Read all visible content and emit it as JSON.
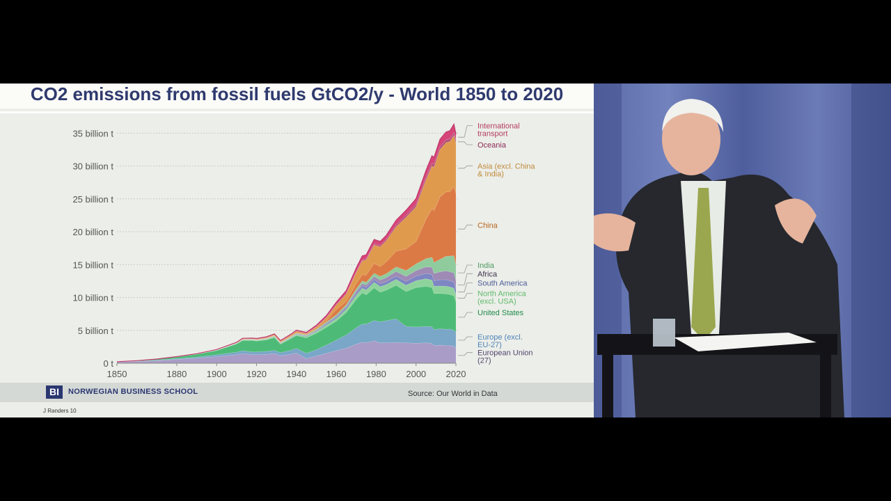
{
  "slide": {
    "title": "CO2 emissions from fossil fuels GtCO2/y - World 1850 to 2020",
    "school": "NORWEGIAN BUSINESS SCHOOL",
    "logo_text": "BI",
    "source": "Source: Our World in Data",
    "page_label": "J Randers 10"
  },
  "chart_data": {
    "type": "area",
    "stacked": true,
    "x": [
      1850,
      1860,
      1870,
      1880,
      1890,
      1900,
      1910,
      1913,
      1918,
      1920,
      1925,
      1929,
      1932,
      1937,
      1940,
      1945,
      1950,
      1955,
      1960,
      1965,
      1970,
      1973,
      1975,
      1979,
      1982,
      1985,
      1990,
      1995,
      2000,
      2005,
      2008,
      2009,
      2012,
      2015,
      2017,
      2019,
      2020
    ],
    "y_tick_labels": [
      "0 t",
      "5 billion t",
      "10 billion t",
      "15 billion t",
      "20 billion t",
      "25 billion t",
      "30 billion t",
      "35 billion t"
    ],
    "y_ticks": [
      0,
      5,
      10,
      15,
      20,
      25,
      30,
      35
    ],
    "x_ticks": [
      1850,
      1880,
      1900,
      1920,
      1940,
      1960,
      1980,
      2000,
      2020
    ],
    "ylim": [
      0,
      36
    ],
    "xlim": [
      1850,
      2020
    ],
    "y_unit": "billion t",
    "grid": true,
    "legend_placement": "right",
    "series": [
      {
        "name": "European Union (27)",
        "color": "#a99cc6",
        "values": [
          0.18,
          0.28,
          0.4,
          0.58,
          0.75,
          1.0,
          1.3,
          1.45,
          1.3,
          1.3,
          1.35,
          1.45,
          1.15,
          1.35,
          1.55,
          0.7,
          1.1,
          1.5,
          1.9,
          2.3,
          2.9,
          3.2,
          3.1,
          3.4,
          3.1,
          3.1,
          3.15,
          3.1,
          3.05,
          3.1,
          3.0,
          2.7,
          2.75,
          2.7,
          2.7,
          2.55,
          2.35
        ]
      },
      {
        "name": "Europe (excl. EU-27)",
        "color": "#7aa6c8",
        "values": [
          0.02,
          0.05,
          0.08,
          0.12,
          0.17,
          0.28,
          0.38,
          0.45,
          0.4,
          0.42,
          0.45,
          0.5,
          0.45,
          0.6,
          0.7,
          0.8,
          0.95,
          1.25,
          1.6,
          2.0,
          2.5,
          2.75,
          2.85,
          3.1,
          3.2,
          3.35,
          3.6,
          2.5,
          2.45,
          2.5,
          2.55,
          2.4,
          2.5,
          2.45,
          2.5,
          2.45,
          2.3
        ]
      },
      {
        "name": "United States",
        "color": "#4dbb77",
        "values": [
          0.03,
          0.06,
          0.15,
          0.25,
          0.45,
          0.65,
          1.25,
          1.55,
          1.75,
          1.65,
          1.75,
          1.95,
          1.3,
          1.75,
          1.95,
          2.35,
          2.5,
          2.7,
          2.9,
          3.4,
          4.3,
          4.75,
          4.45,
          4.95,
          4.5,
          4.65,
          5.1,
          5.3,
          6.0,
          6.1,
          5.95,
          5.5,
          5.35,
          5.4,
          5.25,
          5.25,
          4.7
        ]
      },
      {
        "name": "North America (excl. USA)",
        "color": "#8fd39c",
        "values": [
          0.0,
          0.0,
          0.01,
          0.02,
          0.03,
          0.05,
          0.08,
          0.09,
          0.1,
          0.1,
          0.11,
          0.13,
          0.11,
          0.13,
          0.15,
          0.2,
          0.25,
          0.35,
          0.4,
          0.5,
          0.65,
          0.72,
          0.75,
          0.85,
          0.85,
          0.85,
          0.9,
          0.95,
          1.05,
          1.15,
          1.15,
          1.1,
          1.15,
          1.15,
          1.15,
          1.15,
          1.05
        ]
      },
      {
        "name": "South America",
        "color": "#7d86c2",
        "values": [
          0.0,
          0.0,
          0.0,
          0.01,
          0.01,
          0.01,
          0.02,
          0.03,
          0.03,
          0.03,
          0.04,
          0.05,
          0.05,
          0.06,
          0.07,
          0.08,
          0.1,
          0.15,
          0.2,
          0.25,
          0.32,
          0.36,
          0.38,
          0.45,
          0.45,
          0.45,
          0.5,
          0.6,
          0.7,
          0.8,
          0.85,
          0.85,
          0.95,
          1.0,
          0.95,
          0.95,
          0.85
        ]
      },
      {
        "name": "Africa",
        "color": "#9e8ab5",
        "values": [
          0.0,
          0.0,
          0.0,
          0.0,
          0.0,
          0.01,
          0.01,
          0.02,
          0.02,
          0.02,
          0.02,
          0.03,
          0.03,
          0.04,
          0.05,
          0.06,
          0.1,
          0.13,
          0.15,
          0.2,
          0.3,
          0.35,
          0.38,
          0.45,
          0.55,
          0.6,
          0.7,
          0.75,
          0.85,
          1.0,
          1.1,
          1.1,
          1.2,
          1.35,
          1.35,
          1.4,
          1.3
        ]
      },
      {
        "name": "India",
        "color": "#8fcb9c",
        "values": [
          0.0,
          0.0,
          0.0,
          0.01,
          0.01,
          0.02,
          0.03,
          0.04,
          0.05,
          0.05,
          0.06,
          0.07,
          0.07,
          0.08,
          0.1,
          0.12,
          0.15,
          0.17,
          0.2,
          0.25,
          0.33,
          0.38,
          0.4,
          0.48,
          0.55,
          0.6,
          0.7,
          0.9,
          1.0,
          1.25,
          1.5,
          1.65,
          1.9,
          2.2,
          2.4,
          2.6,
          2.4
        ]
      },
      {
        "name": "China",
        "color": "#dc7a45",
        "values": [
          0.0,
          0.0,
          0.0,
          0.0,
          0.0,
          0.01,
          0.01,
          0.02,
          0.02,
          0.02,
          0.02,
          0.03,
          0.03,
          0.03,
          0.05,
          0.05,
          0.08,
          0.2,
          0.8,
          0.5,
          0.8,
          0.95,
          1.1,
          1.5,
          1.5,
          1.8,
          2.4,
          3.3,
          3.4,
          6.0,
          7.4,
          7.9,
          9.5,
          9.8,
          9.8,
          10.5,
          10.9
        ]
      },
      {
        "name": "Asia (excl. China & India)",
        "color": "#e09a4d",
        "values": [
          0.0,
          0.0,
          0.0,
          0.01,
          0.01,
          0.02,
          0.05,
          0.07,
          0.08,
          0.09,
          0.12,
          0.15,
          0.15,
          0.2,
          0.25,
          0.15,
          0.3,
          0.45,
          0.7,
          1.1,
          1.7,
          2.1,
          2.3,
          2.8,
          3.0,
          3.2,
          3.7,
          4.8,
          5.3,
          6.0,
          6.5,
          6.6,
          7.2,
          7.5,
          7.6,
          7.8,
          7.6
        ]
      },
      {
        "name": "Oceania",
        "color": "#b4547a",
        "values": [
          0.0,
          0.0,
          0.0,
          0.01,
          0.01,
          0.01,
          0.02,
          0.02,
          0.02,
          0.02,
          0.03,
          0.03,
          0.03,
          0.03,
          0.04,
          0.04,
          0.05,
          0.06,
          0.08,
          0.1,
          0.15,
          0.17,
          0.18,
          0.2,
          0.22,
          0.23,
          0.3,
          0.32,
          0.38,
          0.42,
          0.45,
          0.45,
          0.45,
          0.45,
          0.46,
          0.46,
          0.45
        ]
      },
      {
        "name": "International transport",
        "color": "#d6457a",
        "values": [
          0.0,
          0.0,
          0.0,
          0.0,
          0.01,
          0.02,
          0.04,
          0.05,
          0.05,
          0.06,
          0.07,
          0.08,
          0.08,
          0.1,
          0.12,
          0.14,
          0.2,
          0.28,
          0.36,
          0.45,
          0.55,
          0.6,
          0.6,
          0.65,
          0.6,
          0.6,
          0.7,
          0.75,
          0.85,
          1.0,
          1.1,
          1.05,
          1.1,
          1.15,
          1.2,
          1.25,
          0.95
        ]
      }
    ],
    "legend_labels": [
      {
        "series": "International transport",
        "lines": [
          "International",
          "transport"
        ],
        "color": "#b33b63",
        "y": 35.7
      },
      {
        "series": "Oceania",
        "lines": [
          "Oceania"
        ],
        "color": "#8a2a56",
        "y": 32.8
      },
      {
        "series": "Asia (excl. China & India)",
        "lines": [
          "Asia (excl. China",
          "& India)"
        ],
        "color": "#c08a3c",
        "y": 29.6
      },
      {
        "series": "China",
        "lines": [
          "China"
        ],
        "color": "#b8651e",
        "y": 20.6
      },
      {
        "series": "India",
        "lines": [
          "India"
        ],
        "color": "#4f9a62",
        "y": 14.5
      },
      {
        "series": "Africa",
        "lines": [
          "Africa"
        ],
        "color": "#3b2f4c",
        "y": 13.2
      },
      {
        "series": "South America",
        "lines": [
          "South America"
        ],
        "color": "#4b5a97",
        "y": 11.8
      },
      {
        "series": "North America (excl. USA)",
        "lines": [
          "North America",
          "(excl. USA)"
        ],
        "color": "#5fba6b",
        "y": 10.2
      },
      {
        "series": "United States",
        "lines": [
          "United States"
        ],
        "color": "#1f8a4a",
        "y": 7.3
      },
      {
        "series": "Europe (excl. EU-27)",
        "lines": [
          "Europe (excl.",
          "EU-27)"
        ],
        "color": "#4e84b8",
        "y": 3.6
      },
      {
        "series": "European Union (27)",
        "lines": [
          "European Union",
          "(27)"
        ],
        "color": "#51456e",
        "y": 1.2
      }
    ]
  }
}
